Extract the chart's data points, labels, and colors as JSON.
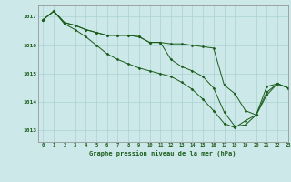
{
  "title": "Graphe pression niveau de la mer (hPa)",
  "background_color": "#cce8e8",
  "grid_color": "#aad0d0",
  "line_color": "#1a5c1a",
  "xlim": [
    -0.5,
    23
  ],
  "ylim": [
    1012.6,
    1017.4
  ],
  "yticks": [
    1013,
    1014,
    1015,
    1016,
    1017
  ],
  "xticks": [
    0,
    1,
    2,
    3,
    4,
    5,
    6,
    7,
    8,
    9,
    10,
    11,
    12,
    13,
    14,
    15,
    16,
    17,
    18,
    19,
    20,
    21,
    22,
    23
  ],
  "series": [
    [
      1016.9,
      1017.2,
      1016.8,
      1016.7,
      1016.55,
      1016.45,
      1016.35,
      1016.35,
      1016.35,
      1016.3,
      1016.1,
      1016.1,
      1016.05,
      1016.05,
      1016.0,
      1015.95,
      1015.9,
      1014.6,
      1014.3,
      1013.7,
      1013.55,
      1014.55,
      1014.65,
      1014.5
    ],
    [
      1016.9,
      1017.2,
      1016.8,
      1016.7,
      1016.55,
      1016.45,
      1016.35,
      1016.35,
      1016.35,
      1016.3,
      1016.1,
      1016.1,
      1015.5,
      1015.25,
      1015.1,
      1014.9,
      1014.5,
      1013.65,
      1013.15,
      1013.2,
      1013.55,
      1014.35,
      1014.65,
      1014.5
    ],
    [
      1016.9,
      1017.2,
      1016.75,
      1016.55,
      1016.3,
      1016.0,
      1015.7,
      1015.5,
      1015.35,
      1015.2,
      1015.1,
      1015.0,
      1014.9,
      1014.7,
      1014.45,
      1014.1,
      1013.7,
      1013.25,
      1013.1,
      1013.35,
      1013.55,
      1014.25,
      1014.65,
      1014.5
    ]
  ]
}
